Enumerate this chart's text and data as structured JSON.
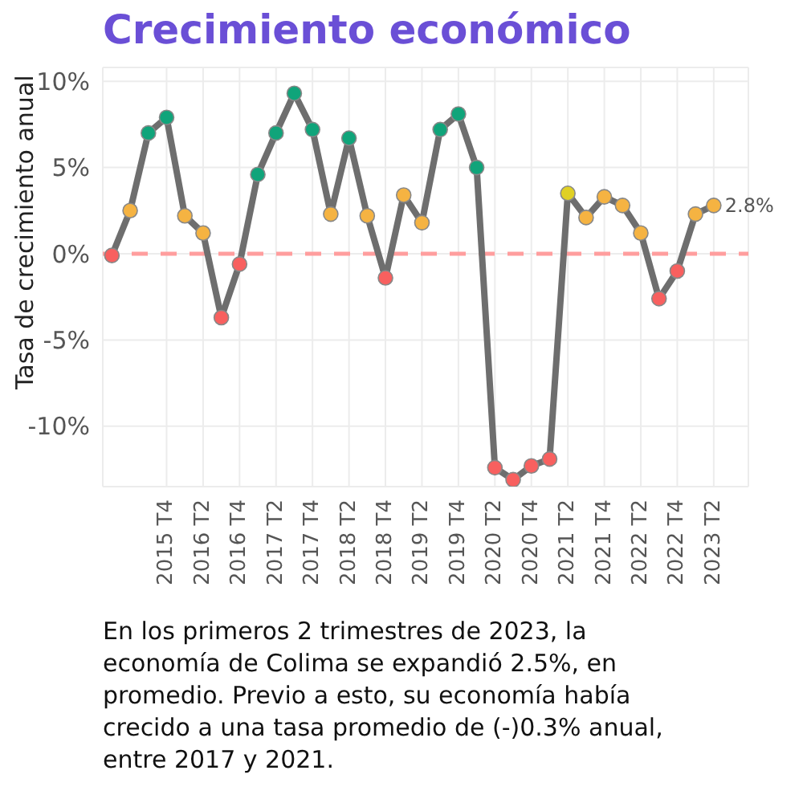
{
  "chart_data": {
    "type": "line",
    "title": "Crecimiento económico",
    "ylabel": "Tasa de crecimiento anual",
    "categories": [
      null,
      null,
      null,
      "2015 T4",
      null,
      "2016 T2",
      null,
      "2016 T4",
      null,
      "2017 T2",
      null,
      "2017 T4",
      null,
      "2018 T2",
      null,
      "2018 T4",
      null,
      "2019 T2",
      null,
      "2019 T4",
      null,
      "2020 T2",
      null,
      "2020 T4",
      null,
      "2021 T2",
      null,
      "2021 T4",
      null,
      "2022 T2",
      null,
      "2022 T4",
      null,
      "2023 T2"
    ],
    "series": [
      {
        "color": "#6e6e6e",
        "values": [
          -0.1,
          2.5,
          7.0,
          7.9,
          2.2,
          1.2,
          -3.7,
          -0.6,
          4.6,
          7.0,
          9.3,
          7.2,
          2.3,
          6.7,
          2.2,
          -1.4,
          3.4,
          1.8,
          7.2,
          8.1,
          5.0,
          -12.4,
          -13.1,
          -12.3,
          -11.9,
          3.5,
          2.1,
          3.3,
          2.8,
          1.2,
          -2.6,
          -1.0,
          2.3,
          2.8
        ],
        "colors": [
          "#f8605f",
          "#f5b342",
          "#10a47a",
          "#10a47a",
          "#f5b342",
          "#f5b342",
          "#f8605f",
          "#f8605f",
          "#10a47a",
          "#10a47a",
          "#10a47a",
          "#10a47a",
          "#f5b342",
          "#10a47a",
          "#f5b342",
          "#f8605f",
          "#f5b342",
          "#f5b342",
          "#10a47a",
          "#10a47a",
          "#10a47a",
          "#f8605f",
          "#f8605f",
          "#f8605f",
          "#f8605f",
          "#e0d024",
          "#f5b342",
          "#f5b342",
          "#f5b342",
          "#f5b342",
          "#f8605f",
          "#f8605f",
          "#f5b342",
          "#f5b342"
        ]
      }
    ],
    "ylim": [
      -13.5,
      10.8
    ],
    "yticks": [
      {
        "value": -10,
        "label": "-10%"
      },
      {
        "value": -5,
        "label": "-5%"
      },
      {
        "value": 0,
        "label": "0%"
      },
      {
        "value": 5,
        "label": "5%"
      },
      {
        "value": 10,
        "label": "10%"
      }
    ],
    "grid": true,
    "marker": "circle",
    "line_style": "solid",
    "ref_lines": [
      {
        "axis": "y",
        "value": 0,
        "color": "#ff9e9e",
        "line_style": "dashed"
      }
    ],
    "annotations": [
      {
        "text": "2.8%",
        "x": "2023 T2",
        "y": 2.8
      },
      "En los primeros 2 trimestres de 2023, la economía de Colima se expandió 2.5%, en promedio. Previo a esto, su economía había crecido a una tasa promedio de (-)0.3% anual, entre 2017 y 2021."
    ]
  }
}
